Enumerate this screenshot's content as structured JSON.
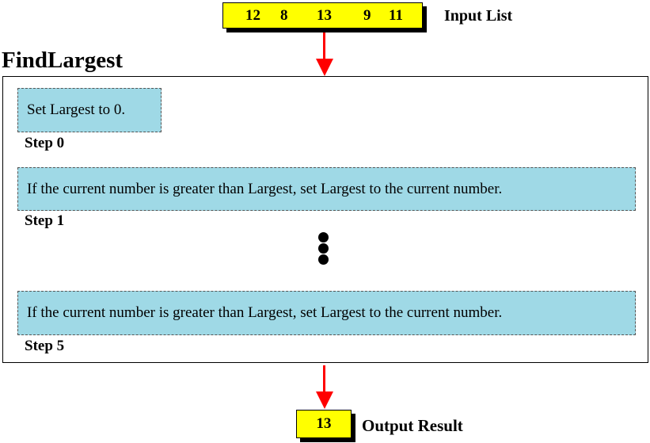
{
  "input": {
    "numbers": [
      "12",
      "8",
      "13",
      "9",
      "11"
    ],
    "label": "Input List"
  },
  "algorithm": {
    "title": "FindLargest"
  },
  "steps": [
    {
      "text": "Set Largest to 0.",
      "label": "Step 0"
    },
    {
      "text": "If the current number is greater than Largest, set Largest to the current number.",
      "label": "Step 1"
    },
    {
      "text": "If the current number is greater than Largest, set Largest to the current number.",
      "label": "Step 5"
    }
  ],
  "output": {
    "value": "13",
    "label": "Output Result"
  },
  "colors": {
    "list_fill": "#ffff00",
    "step_fill": "#9fd9e6",
    "arrow": "#ff0000",
    "border": "#000000"
  }
}
